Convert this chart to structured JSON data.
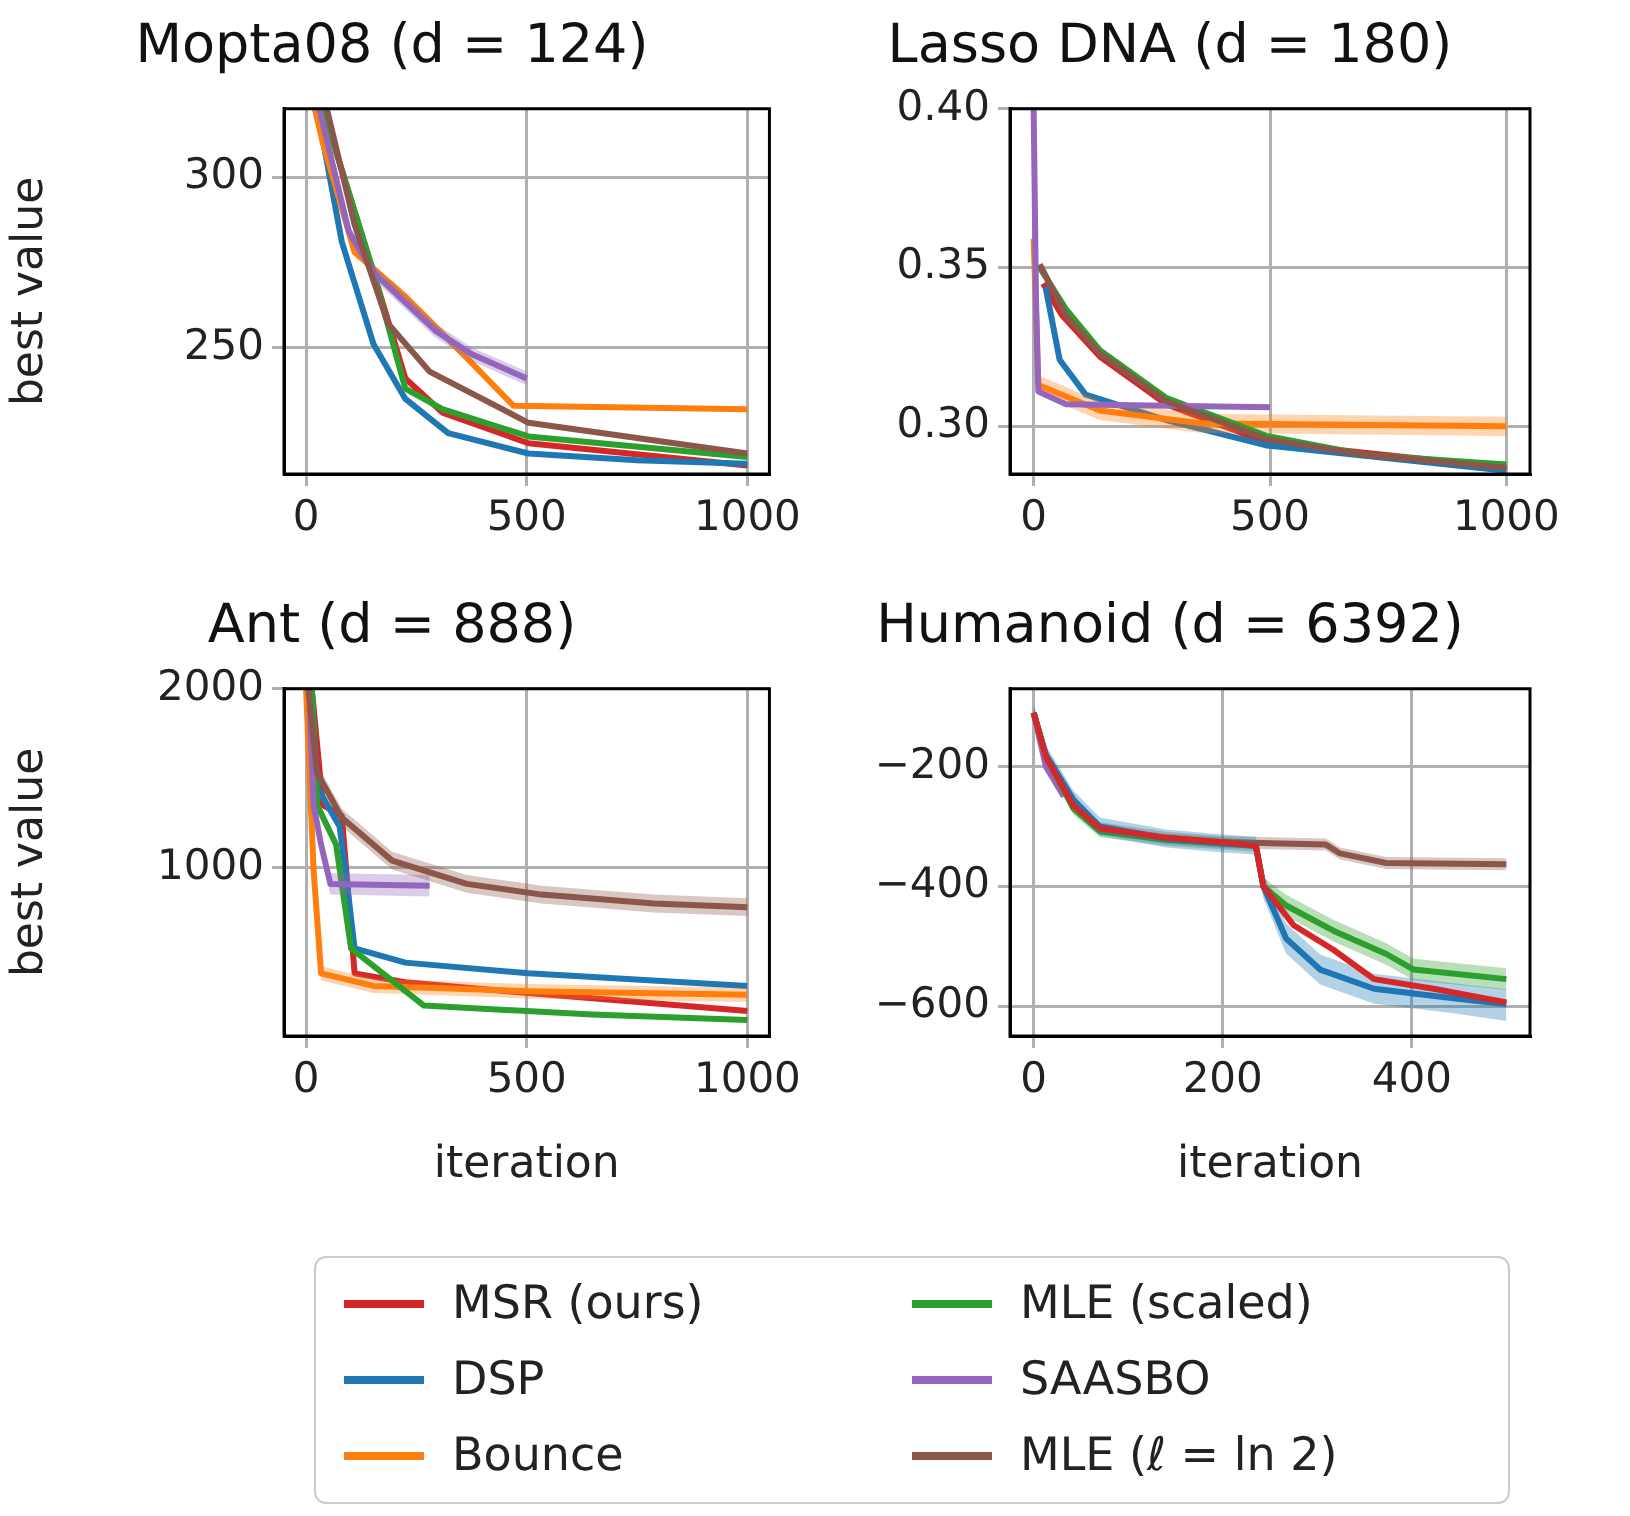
{
  "chart_data": [
    {
      "type": "line",
      "title": "Mopta08 (d = 124)",
      "ylabel": "best value",
      "xlim": [
        -50,
        1050
      ],
      "xticks": [
        0,
        500,
        1000
      ],
      "ylim": [
        213,
        320
      ],
      "yticks": [
        250,
        300
      ],
      "grid": true,
      "legend": "bottom",
      "series": [
        {
          "name": "MSR (ours)",
          "color": "#d62728",
          "x": [
            38,
            153,
            225,
            309,
            504,
            1000
          ],
          "values": [
            320,
            272,
            241,
            231,
            222,
            215.5
          ]
        },
        {
          "name": "DSP",
          "color": "#1f77b4",
          "x": [
            25,
            81,
            153,
            225,
            322,
            504,
            750,
            1000
          ],
          "values": [
            320,
            281,
            251,
            235,
            225,
            219,
            217,
            216
          ]
        },
        {
          "name": "Bounce",
          "color": "#ff7f0e",
          "x": [
            20,
            38,
            110,
            225,
            364,
            470,
            1000
          ],
          "values": [
            320,
            310,
            278,
            265,
            247,
            233,
            232
          ]
        },
        {
          "name": "MLE (scaled)",
          "color": "#2ca02c",
          "x": [
            38,
            153,
            225,
            309,
            504,
            1000
          ],
          "values": [
            320,
            272,
            238,
            232,
            224,
            218
          ]
        },
        {
          "name": "SAASBO",
          "color": "#9467bd",
          "x": [
            30,
            97,
            153,
            293,
            377,
            500
          ],
          "values": [
            320,
            284,
            272,
            255,
            248,
            241
          ],
          "lower": [
            318,
            282,
            270,
            253,
            246,
            239
          ],
          "upper": [
            320,
            286,
            274,
            257,
            250,
            243
          ]
        },
        {
          "name": "MLE (ℓ = ln 2)",
          "color": "#8c564b",
          "x": [
            47,
            110,
            186,
            280,
            504,
            1000
          ],
          "values": [
            320,
            286,
            257,
            243,
            228,
            219
          ]
        }
      ]
    },
    {
      "type": "line",
      "title": "Lasso DNA (d = 180)",
      "xlim": [
        -50,
        1050
      ],
      "xticks": [
        0,
        500,
        1000
      ],
      "ylim": [
        0.285,
        0.4
      ],
      "yticks": [
        {
          "value": 0.3,
          "label": "0.30"
        },
        {
          "value": 0.35,
          "label": "0.35"
        },
        {
          "value": 0.4,
          "label": "0.40"
        }
      ],
      "grid": true,
      "series": [
        {
          "name": "MSR (ours)",
          "color": "#d62728",
          "x": [
            20,
            60,
            140,
            280,
            492,
            1000
          ],
          "values": [
            0.345,
            0.335,
            0.322,
            0.307,
            0.295,
            0.287
          ]
        },
        {
          "name": "DSP",
          "color": "#1f77b4",
          "x": [
            25,
            55,
            110,
            280,
            492,
            1000
          ],
          "values": [
            0.344,
            0.321,
            0.31,
            0.302,
            0.294,
            0.286
          ]
        },
        {
          "name": "Bounce",
          "color": "#ff7f0e",
          "x": [
            0,
            10,
            140,
            352,
            1000
          ],
          "values": [
            0.359,
            0.313,
            0.305,
            0.301,
            0.3
          ],
          "lower": [
            0.357,
            0.31,
            0.302,
            0.298,
            0.297
          ],
          "upper": [
            0.361,
            0.316,
            0.308,
            0.304,
            0.303
          ]
        },
        {
          "name": "MLE (scaled)",
          "color": "#2ca02c",
          "x": [
            13,
            68,
            140,
            280,
            492,
            703,
            1000
          ],
          "values": [
            0.35,
            0.337,
            0.324,
            0.309,
            0.297,
            0.291,
            0.288
          ]
        },
        {
          "name": "SAASBO",
          "color": "#9467bd",
          "x": [
            0,
            5,
            10,
            68,
            500
          ],
          "values": [
            0.4,
            0.34,
            0.311,
            0.307,
            0.306
          ]
        },
        {
          "name": "MLE (ℓ = ln 2)",
          "color": "#8c564b",
          "x": [
            13,
            68,
            140,
            280,
            492,
            703,
            1000
          ],
          "values": [
            0.351,
            0.335,
            0.323,
            0.308,
            0.296,
            0.291,
            0.287
          ]
        }
      ]
    },
    {
      "type": "line",
      "title": "Ant (d = 888)",
      "xlabel": "iteration",
      "ylabel": "best value",
      "xlim": [
        -50,
        1050
      ],
      "xticks": [
        0,
        500,
        1000
      ],
      "ylim": [
        60,
        2000
      ],
      "yticks": [
        1000,
        2000
      ],
      "grid": true,
      "series": [
        {
          "name": "MSR (ours)",
          "color": "#d62728",
          "x": [
            13,
            38,
            81,
            110,
            225,
            504,
            1000
          ],
          "values": [
            2000,
            1350,
            1290,
            410,
            360,
            300,
            200
          ]
        },
        {
          "name": "DSP",
          "color": "#1f77b4",
          "x": [
            13,
            25,
            76,
            89,
            110,
            225,
            504,
            1000
          ],
          "values": [
            2000,
            1450,
            1230,
            990,
            550,
            470,
            410,
            340
          ]
        },
        {
          "name": "Bounce",
          "color": "#ff7f0e",
          "x": [
            0,
            17,
            34,
            153,
            504,
            1000
          ],
          "values": [
            2000,
            990,
            410,
            340,
            310,
            290
          ],
          "lower": [
            2000,
            950,
            370,
            300,
            270,
            250
          ],
          "upper": [
            2000,
            1030,
            450,
            380,
            350,
            330
          ]
        },
        {
          "name": "MLE (scaled)",
          "color": "#2ca02c",
          "x": [
            13,
            25,
            68,
            102,
            195,
            267,
            648,
            1000
          ],
          "values": [
            2000,
            1350,
            1130,
            550,
            370,
            230,
            180,
            150
          ]
        },
        {
          "name": "SAASBO",
          "color": "#9467bd",
          "x": [
            8,
            17,
            34,
            55,
            280
          ],
          "values": [
            1900,
            1350,
            1130,
            910,
            900
          ],
          "lower": [
            1840,
            1290,
            1070,
            850,
            840
          ],
          "upper": [
            1960,
            1410,
            1190,
            970,
            960
          ]
        },
        {
          "name": "MLE (ℓ = ln 2)",
          "color": "#8c564b",
          "x": [
            5,
            25,
            81,
            195,
            364,
            534,
            788,
            1000
          ],
          "values": [
            2000,
            1530,
            1280,
            1040,
            910,
            850,
            800,
            780
          ],
          "lower": [
            2000,
            1480,
            1230,
            990,
            860,
            800,
            750,
            730
          ],
          "upper": [
            2000,
            1580,
            1330,
            1090,
            960,
            900,
            850,
            830
          ]
        }
      ]
    },
    {
      "type": "line",
      "title": "Humanoid (d = 6392)",
      "xlabel": "iteration",
      "xlim": [
        -25,
        525
      ],
      "xticks": [
        0,
        200,
        400
      ],
      "ylim": [
        -650,
        -70
      ],
      "yticks": [
        {
          "value": -600,
          "label": "−600"
        },
        {
          "value": -400,
          "label": "−400"
        },
        {
          "value": -200,
          "label": "−200"
        }
      ],
      "grid": true,
      "series": [
        {
          "name": "MLE (ℓ = ln 2)",
          "color": "#8c564b",
          "x": [
            0,
            13,
            42,
            70,
            140,
            197,
            309,
            324,
            373,
            500
          ],
          "values": [
            -110,
            -184,
            -265,
            -303,
            -319,
            -326,
            -330,
            -345,
            -361,
            -363
          ],
          "lower": [
            -120,
            -194,
            -275,
            -313,
            -329,
            -336,
            -340,
            -355,
            -371,
            -373
          ],
          "upper": [
            -100,
            -174,
            -255,
            -293,
            -309,
            -316,
            -320,
            -335,
            -351,
            -353
          ]
        },
        {
          "name": "SAASBO",
          "color": "#9467bd",
          "x": [
            0,
            13,
            32
          ],
          "values": [
            -110,
            -200,
            -250
          ]
        },
        {
          "name": "MLE (scaled)",
          "color": "#2ca02c",
          "x": [
            0,
            13,
            42,
            70,
            140,
            197,
            235,
            243,
            267,
            317,
            373,
            402,
            500
          ],
          "values": [
            -110,
            -182,
            -270,
            -308,
            -322,
            -328,
            -332,
            -400,
            -432,
            -474,
            -513,
            -539,
            -555
          ],
          "lower": [
            -120,
            -192,
            -280,
            -318,
            -332,
            -338,
            -342,
            -415,
            -450,
            -492,
            -531,
            -557,
            -573
          ],
          "upper": [
            -100,
            -172,
            -260,
            -298,
            -312,
            -318,
            -322,
            -385,
            -414,
            -456,
            -495,
            -521,
            -537
          ]
        },
        {
          "name": "DSP",
          "color": "#1f77b4",
          "x": [
            0,
            13,
            42,
            70,
            140,
            197,
            235,
            243,
            267,
            303,
            360,
            444,
            500
          ],
          "values": [
            -110,
            -180,
            -255,
            -300,
            -320,
            -328,
            -332,
            -400,
            -487,
            -539,
            -571,
            -587,
            -597
          ],
          "lower": [
            -125,
            -195,
            -270,
            -315,
            -335,
            -343,
            -347,
            -420,
            -512,
            -564,
            -596,
            -612,
            -625
          ],
          "upper": [
            -95,
            -165,
            -240,
            -285,
            -305,
            -313,
            -317,
            -380,
            -462,
            -514,
            -546,
            -562,
            -572
          ]
        },
        {
          "name": "MSR (ours)",
          "color": "#d62728",
          "x": [
            0,
            13,
            42,
            70,
            140,
            197,
            235,
            243,
            275,
            317,
            360,
            423,
            500
          ],
          "values": [
            -110,
            -184,
            -265,
            -303,
            -319,
            -326,
            -332,
            -400,
            -465,
            -506,
            -555,
            -571,
            -594
          ]
        }
      ]
    }
  ]
}
